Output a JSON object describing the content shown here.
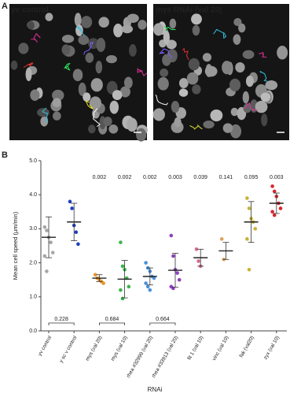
{
  "panel_labels": [
    "A",
    "B"
  ],
  "panel_a": {
    "images": [
      {
        "label": "yv control",
        "color": "#dddddd"
      },
      {
        "label": "mys RNAi (val 20)",
        "color": "#e8962c"
      }
    ]
  },
  "chart_data": {
    "type": "strip",
    "ylabel": "Mean cell speed (μm/min)",
    "xlabel": "RNAi",
    "categories": [
      "yv control",
      "y sc v control",
      "mys (val 20)",
      "mys (val 10)",
      "rhea #32999 (val 20)",
      "rhea #33913 (val 20)",
      "fit 1 (val 10)",
      "vinc (val 10)",
      "fak (val20)",
      "zyx (val 10)"
    ],
    "colors": [
      "#a6a6a6",
      "#1f3fbf",
      "#e8962c",
      "#3cb54a",
      "#4a90d9",
      "#8e3fbf",
      "#d9698c",
      "#d9a45a",
      "#c9b236",
      "#d9252a"
    ],
    "values": [
      [
        3.05,
        2.95,
        2.75,
        2.6,
        2.3,
        2.2,
        1.75
      ],
      [
        3.8,
        3.6,
        3.1,
        2.9,
        2.55
      ],
      [
        1.65,
        1.55,
        1.5,
        1.45,
        1.4
      ],
      [
        2.6,
        1.9,
        1.8,
        1.55,
        1.3,
        1.2,
        0.95
      ],
      [
        2.0,
        1.85,
        1.75,
        1.6,
        1.55,
        1.4,
        1.3,
        1.2
      ],
      [
        2.8,
        2.2,
        1.8,
        1.7,
        1.5,
        1.3,
        1.25
      ],
      [
        2.4,
        2.05,
        1.9
      ],
      [
        2.7,
        2.1
      ],
      [
        3.9,
        3.6,
        3.3,
        3.2,
        3.0,
        2.7,
        1.8
      ],
      [
        4.25,
        4.1,
        3.95,
        3.75,
        3.6,
        3.5,
        3.4
      ]
    ],
    "means": [
      2.75,
      3.2,
      1.55,
      1.52,
      1.6,
      1.78,
      2.15,
      2.35,
      3.2,
      3.75
    ],
    "sds": [
      0.6,
      0.55,
      0.1,
      0.55,
      0.25,
      0.5,
      0.25,
      0.25,
      0.6,
      0.3
    ],
    "p_values": [
      null,
      null,
      0.002,
      0.002,
      0.002,
      0.003,
      0.039,
      0.141,
      0.095,
      0.003
    ],
    "comparisons": [
      {
        "categories": [
          "yv control",
          "y sc v control"
        ],
        "p": 0.228
      },
      {
        "categories": [
          "mys (val 20)",
          "mys (val 10)"
        ],
        "p": 0.684
      },
      {
        "categories": [
          "rhea #32999 (val 20)",
          "rhea #33913 (val 20)"
        ],
        "p": 0.664
      }
    ],
    "ylim": [
      0,
      5
    ],
    "yticks": [
      {
        "value": 0,
        "label": "0.0"
      },
      {
        "value": 1,
        "label": "1.0"
      },
      {
        "value": 2,
        "label": "2.0"
      },
      {
        "value": 3,
        "label": "3.0"
      },
      {
        "value": 4,
        "label": "4.0"
      },
      {
        "value": 5,
        "label": "5.0"
      }
    ]
  }
}
